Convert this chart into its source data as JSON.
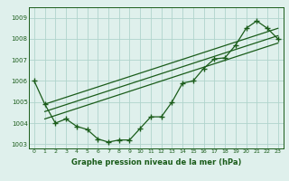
{
  "xlabel": "Graphe pression niveau de la mer (hPa)",
  "x": [
    0,
    1,
    2,
    3,
    4,
    5,
    6,
    7,
    8,
    9,
    10,
    11,
    12,
    13,
    14,
    15,
    16,
    17,
    18,
    19,
    20,
    21,
    22,
    23
  ],
  "y_main": [
    1006.0,
    1004.9,
    1004.0,
    1004.2,
    1003.85,
    1003.7,
    1003.25,
    1003.1,
    1003.2,
    1003.2,
    1003.75,
    1004.3,
    1004.3,
    1005.0,
    1005.9,
    1006.0,
    1006.6,
    1007.05,
    1007.1,
    1007.7,
    1008.5,
    1008.85,
    1008.5,
    1008.0
  ],
  "trend_line1_x": [
    1,
    23
  ],
  "trend_line1_y": [
    1004.2,
    1007.8
  ],
  "trend_line2_x": [
    1,
    23
  ],
  "trend_line2_y": [
    1004.9,
    1008.5
  ],
  "trend_line3_x": [
    1,
    23
  ],
  "trend_line3_y": [
    1004.55,
    1008.15
  ],
  "ylim": [
    1002.8,
    1009.5
  ],
  "yticks": [
    1003,
    1004,
    1005,
    1006,
    1007,
    1008,
    1009
  ],
  "xticks": [
    0,
    1,
    2,
    3,
    4,
    5,
    6,
    7,
    8,
    9,
    10,
    11,
    12,
    13,
    14,
    15,
    16,
    17,
    18,
    19,
    20,
    21,
    22,
    23
  ],
  "bg_color": "#dff0ec",
  "line_color": "#1a5c1a",
  "grid_color": "#b0d4cc",
  "marker": "+",
  "marker_size": 4,
  "linewidth": 0.9
}
